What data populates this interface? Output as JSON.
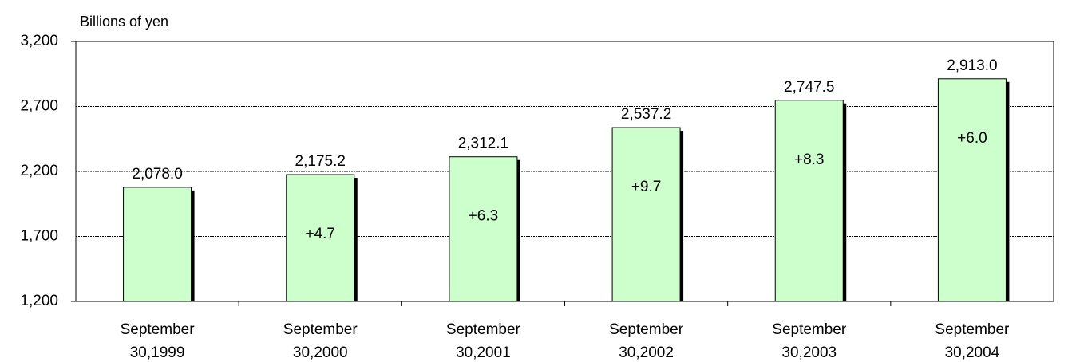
{
  "chart_data": {
    "type": "bar",
    "y_axis_label": "Billions of yen",
    "categories": [
      "September\n30,1999",
      "September\n30,2000",
      "September\n30,2001",
      "September\n30,2002",
      "September\n30,2003",
      "September\n30,2004"
    ],
    "values": [
      2078.0,
      2175.2,
      2312.1,
      2537.2,
      2747.5,
      2913.0
    ],
    "value_labels": [
      "2,078.0",
      "2,175.2",
      "2,312.1",
      "2,537.2",
      "2,747.5",
      "2,913.0"
    ],
    "annotations": [
      null,
      "+4.7",
      "+6.3",
      "+9.7",
      "+8.3",
      "+6.0"
    ],
    "color": "#ccffcc",
    "ylim": [
      1200,
      3200
    ],
    "yticks": [
      {
        "value": 1200,
        "label": "1,200"
      },
      {
        "value": 1700,
        "label": "1,700"
      },
      {
        "value": 2200,
        "label": "2,200"
      },
      {
        "value": 2700,
        "label": "2,700"
      },
      {
        "value": 3200,
        "label": "3,200"
      }
    ],
    "grid": true
  }
}
